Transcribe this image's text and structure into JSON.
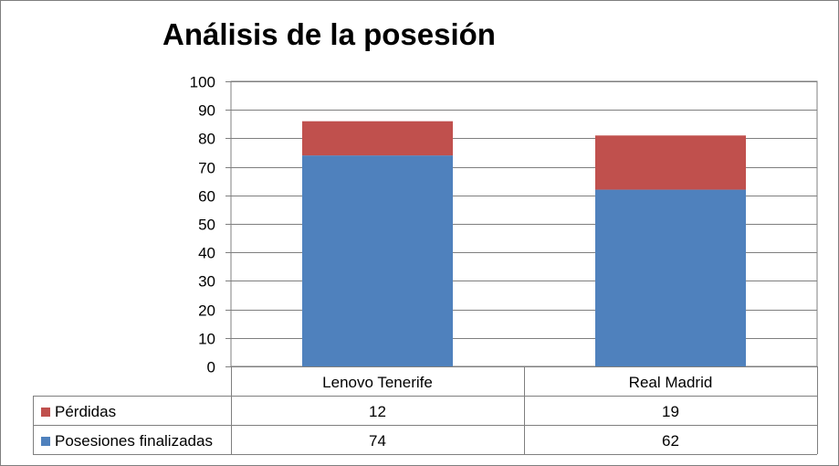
{
  "chart_data": {
    "type": "bar",
    "stacked": true,
    "title": "Análisis de la posesión",
    "categories": [
      "Lenovo Tenerife",
      "Real Madrid"
    ],
    "series": [
      {
        "name": "Posesiones finalizadas",
        "values": [
          74,
          62
        ],
        "color": "#4f81bd"
      },
      {
        "name": "Pérdidas",
        "values": [
          12,
          19
        ],
        "color": "#c0504d"
      }
    ],
    "ylim": [
      0,
      100
    ],
    "yticks": [
      0,
      10,
      20,
      30,
      40,
      50,
      60,
      70,
      80,
      90,
      100
    ],
    "grid": true,
    "data_table": true,
    "table_rows_order": [
      "Pérdidas",
      "Posesiones finalizadas"
    ]
  }
}
